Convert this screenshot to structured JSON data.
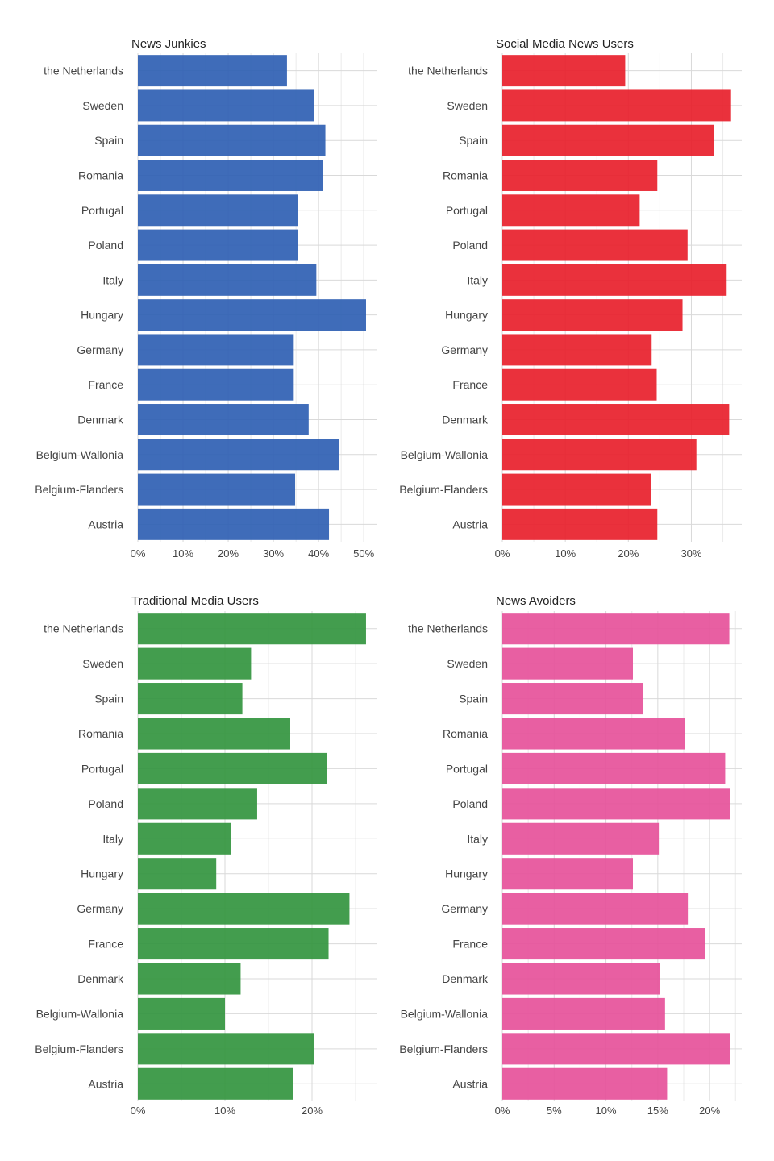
{
  "chart_data": [
    {
      "type": "bar",
      "orientation": "horizontal",
      "title": "News Junkies",
      "color": "#2f5fb3",
      "categories": [
        "the Netherlands",
        "Sweden",
        "Spain",
        "Romania",
        "Portugal",
        "Poland",
        "Italy",
        "Hungary",
        "Germany",
        "France",
        "Denmark",
        "Belgium-Wallonia",
        "Belgium-Flanders",
        "Austria"
      ],
      "values": [
        0.33,
        0.39,
        0.415,
        0.41,
        0.355,
        0.355,
        0.395,
        0.505,
        0.345,
        0.345,
        0.378,
        0.445,
        0.348,
        0.423
      ],
      "xlim": [
        0,
        0.53
      ],
      "ticks": [
        0,
        0.1,
        0.2,
        0.3,
        0.4,
        0.5
      ],
      "tick_labels": [
        "0%",
        "10%",
        "20%",
        "30%",
        "40%",
        "50%"
      ],
      "xlabel": "",
      "ylabel": "",
      "grid": true
    },
    {
      "type": "bar",
      "orientation": "horizontal",
      "title": "Social Media News Users",
      "color": "#e8202b",
      "categories": [
        "the Netherlands",
        "Sweden",
        "Spain",
        "Romania",
        "Portugal",
        "Poland",
        "Italy",
        "Hungary",
        "Germany",
        "France",
        "Denmark",
        "Belgium-Wallonia",
        "Belgium-Flanders",
        "Austria"
      ],
      "values": [
        0.195,
        0.363,
        0.336,
        0.246,
        0.218,
        0.294,
        0.356,
        0.286,
        0.237,
        0.245,
        0.36,
        0.308,
        0.236,
        0.246
      ],
      "xlim": [
        0,
        0.38
      ],
      "ticks": [
        0,
        0.1,
        0.2,
        0.3
      ],
      "tick_labels": [
        "0%",
        "10%",
        "20%",
        "30%"
      ],
      "xlabel": "",
      "ylabel": "",
      "grid": true
    },
    {
      "type": "bar",
      "orientation": "horizontal",
      "title": "Traditional Media Users",
      "color": "#33953f",
      "categories": [
        "the Netherlands",
        "Sweden",
        "Spain",
        "Romania",
        "Portugal",
        "Poland",
        "Italy",
        "Hungary",
        "Germany",
        "France",
        "Denmark",
        "Belgium-Wallonia",
        "Belgium-Flanders",
        "Austria"
      ],
      "values": [
        0.262,
        0.13,
        0.12,
        0.175,
        0.217,
        0.137,
        0.107,
        0.09,
        0.243,
        0.219,
        0.118,
        0.1,
        0.202,
        0.178
      ],
      "xlim": [
        0,
        0.275
      ],
      "ticks": [
        0,
        0.1,
        0.2
      ],
      "tick_labels": [
        "0%",
        "10%",
        "20%"
      ],
      "xlabel": "",
      "ylabel": "",
      "grid": true
    },
    {
      "type": "bar",
      "orientation": "horizontal",
      "title": "News Avoiders",
      "color": "#e6519a",
      "categories": [
        "the Netherlands",
        "Sweden",
        "Spain",
        "Romania",
        "Portugal",
        "Poland",
        "Italy",
        "Hungary",
        "Germany",
        "France",
        "Denmark",
        "Belgium-Wallonia",
        "Belgium-Flanders",
        "Austria"
      ],
      "values": [
        0.219,
        0.126,
        0.136,
        0.176,
        0.215,
        0.22,
        0.151,
        0.126,
        0.179,
        0.196,
        0.152,
        0.157,
        0.22,
        0.159
      ],
      "xlim": [
        0,
        0.231
      ],
      "ticks": [
        0,
        0.05,
        0.1,
        0.15,
        0.2
      ],
      "tick_labels": [
        "0%",
        "5%",
        "10%",
        "15%",
        "20%"
      ],
      "xlabel": "",
      "ylabel": "",
      "grid": true
    }
  ]
}
